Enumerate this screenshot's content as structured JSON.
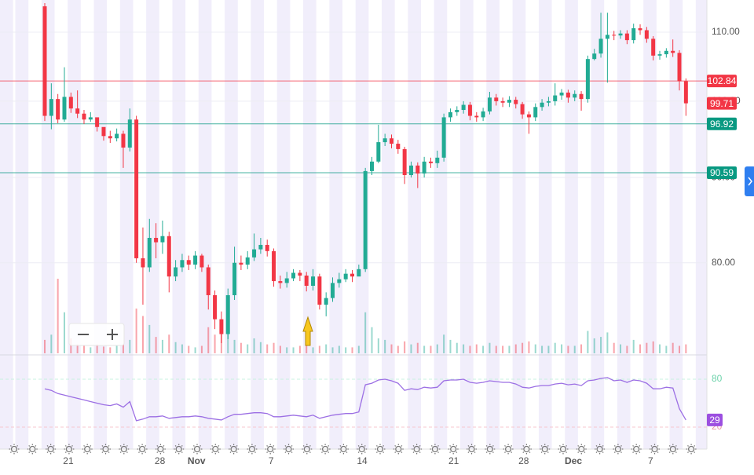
{
  "chart_data": {
    "type": "candlestick",
    "log_scale": true,
    "grid": true,
    "up_color": "#22ab94",
    "down_color": "#f23645",
    "ylim": [
      70.6,
      115.0
    ],
    "yticks": [
      {
        "value": 80,
        "label": "80.00"
      },
      {
        "value": 90,
        "label": "90.00"
      },
      {
        "value": 100,
        "label": "100.00"
      },
      {
        "value": 110,
        "label": "110.00"
      }
    ],
    "xticks": [
      {
        "value": 3.6,
        "label": "21"
      },
      {
        "value": 17.6,
        "label": "28"
      },
      {
        "value": 23.2,
        "label": "Nov"
      },
      {
        "value": 34.6,
        "label": "7"
      },
      {
        "value": 48.5,
        "label": "14"
      },
      {
        "value": 62.5,
        "label": "21"
      },
      {
        "value": 73.2,
        "label": "28"
      },
      {
        "value": 80.8,
        "label": "Dec"
      },
      {
        "value": 92.6,
        "label": "7"
      }
    ],
    "open": [
      114.0,
      98.0,
      100.3,
      97.5,
      100.6,
      99.0,
      98.3,
      97.5,
      97.8,
      96.5,
      95.3,
      95.0,
      95.6,
      93.8,
      97.5,
      80.5,
      79.5,
      82.8,
      82.3,
      83.0,
      78.5,
      79.5,
      80.3,
      79.8,
      80.8,
      79.5,
      76.5,
      74.0,
      72.5,
      76.5,
      80.0,
      79.8,
      80.6,
      81.5,
      82.0,
      81.3,
      78.0,
      77.8,
      78.3,
      78.9,
      78.6,
      77.5,
      78.5,
      75.5,
      76.2,
      77.8,
      78.2,
      78.8,
      78.5,
      79.3,
      90.8,
      92.0,
      94.5,
      95.0,
      94.3,
      93.6,
      90.3,
      91.5,
      90.5,
      92.0,
      91.8,
      92.5,
      97.8,
      98.5,
      98.8,
      99.5,
      98.0,
      97.8,
      98.6,
      100.5,
      100.0,
      99.8,
      100.2,
      99.6,
      98.2,
      97.8,
      99.2,
      99.8,
      100.0,
      100.8,
      101.2,
      100.5,
      101.0,
      100.3,
      106.0,
      106.8,
      109.0,
      109.6,
      109.5,
      109.8,
      108.8,
      110.6,
      110.3,
      109.0,
      106.5,
      106.7,
      107.2,
      106.9,
      102.8
    ],
    "high": [
      114.5,
      102.5,
      101.0,
      104.8,
      101.2,
      101.5,
      98.8,
      98.5,
      97.5,
      96.2,
      96.0,
      96.3,
      96.0,
      99.0,
      98.0,
      84.0,
      85.0,
      84.5,
      84.8,
      83.5,
      80.3,
      81.0,
      80.8,
      81.3,
      81.0,
      79.8,
      77.0,
      74.8,
      77.2,
      81.8,
      80.8,
      81.3,
      83.3,
      82.8,
      82.6,
      81.6,
      78.6,
      79.0,
      79.3,
      79.2,
      79.0,
      79.3,
      78.8,
      76.8,
      78.4,
      78.9,
      79.3,
      79.2,
      79.8,
      91.2,
      92.6,
      96.8,
      95.6,
      95.5,
      94.8,
      93.9,
      92.0,
      91.9,
      92.6,
      92.5,
      93.4,
      98.3,
      99.0,
      99.3,
      100.0,
      99.9,
      98.5,
      99.1,
      101.3,
      101.0,
      100.5,
      100.7,
      100.6,
      99.9,
      98.6,
      99.7,
      100.3,
      100.6,
      102.5,
      101.7,
      101.6,
      101.5,
      101.4,
      106.5,
      107.5,
      113.0,
      113.0,
      110.2,
      110.3,
      110.3,
      111.3,
      111.2,
      110.8,
      109.4,
      107.2,
      107.6,
      108.9,
      107.3,
      103.2
    ],
    "low": [
      97.3,
      96.2,
      97.0,
      97.2,
      98.4,
      97.7,
      96.9,
      97.2,
      95.9,
      94.7,
      94.4,
      94.6,
      91.2,
      93.3,
      80.0,
      75.5,
      79.0,
      80.5,
      81.0,
      76.8,
      78.0,
      79.0,
      79.2,
      79.3,
      79.0,
      75.0,
      73.0,
      71.6,
      72.0,
      76.0,
      79.2,
      79.3,
      80.2,
      81.0,
      80.7,
      77.4,
      77.2,
      77.3,
      78.0,
      78.0,
      76.9,
      77.0,
      75.0,
      74.3,
      75.8,
      77.3,
      77.9,
      77.9,
      78.6,
      79.0,
      90.3,
      91.8,
      94.0,
      93.7,
      93.0,
      89.2,
      90.0,
      88.7,
      90.0,
      91.2,
      91.2,
      92.0,
      97.2,
      98.0,
      98.3,
      97.4,
      97.2,
      97.3,
      98.2,
      99.4,
      99.2,
      99.2,
      99.0,
      97.6,
      95.6,
      97.3,
      98.7,
      99.3,
      99.4,
      100.2,
      99.8,
      100.0,
      98.7,
      99.8,
      105.8,
      106.2,
      102.6,
      108.8,
      109.0,
      108.2,
      108.3,
      109.6,
      108.4,
      105.8,
      105.9,
      106.2,
      106.3,
      101.5,
      98.0
    ],
    "close": [
      98.0,
      100.3,
      97.5,
      100.6,
      99.0,
      98.3,
      97.5,
      97.8,
      96.5,
      95.3,
      95.0,
      95.6,
      93.8,
      97.5,
      80.5,
      79.5,
      82.8,
      82.3,
      83.0,
      78.5,
      79.5,
      80.3,
      79.8,
      80.8,
      79.5,
      76.5,
      74.0,
      72.5,
      76.5,
      80.0,
      79.8,
      80.6,
      81.5,
      82.0,
      81.3,
      78.0,
      77.8,
      78.3,
      78.9,
      78.6,
      77.5,
      78.5,
      75.5,
      76.2,
      77.8,
      78.2,
      78.8,
      78.5,
      79.3,
      90.8,
      92.0,
      94.5,
      95.0,
      94.3,
      93.6,
      90.3,
      91.5,
      90.5,
      92.0,
      91.8,
      92.5,
      97.8,
      98.5,
      98.8,
      99.5,
      98.0,
      97.8,
      98.6,
      100.5,
      100.0,
      99.8,
      100.2,
      99.6,
      98.2,
      97.8,
      99.2,
      99.8,
      100.0,
      100.8,
      101.2,
      100.5,
      101.0,
      100.3,
      106.0,
      106.8,
      109.0,
      109.6,
      109.5,
      109.8,
      108.8,
      110.6,
      110.3,
      109.0,
      106.5,
      106.7,
      107.2,
      106.9,
      102.8,
      99.71
    ],
    "volume": [
      18,
      25,
      100,
      55,
      20,
      12,
      10,
      8,
      12,
      9,
      8,
      10,
      12,
      18,
      60,
      50,
      38,
      22,
      18,
      25,
      15,
      12,
      10,
      8,
      10,
      35,
      25,
      40,
      30,
      18,
      14,
      12,
      20,
      15,
      12,
      14,
      10,
      8,
      8,
      10,
      12,
      8,
      10,
      12,
      8,
      10,
      8,
      8,
      10,
      55,
      35,
      20,
      18,
      12,
      10,
      16,
      12,
      14,
      10,
      10,
      12,
      25,
      18,
      14,
      12,
      10,
      12,
      10,
      14,
      10,
      10,
      10,
      12,
      14,
      16,
      12,
      10,
      10,
      14,
      12,
      10,
      10,
      12,
      30,
      20,
      22,
      28,
      14,
      12,
      10,
      18,
      12,
      14,
      16,
      12,
      10,
      14,
      10,
      12
    ],
    "price_lines": [
      {
        "value": 102.84,
        "color": "#f23645"
      },
      {
        "value": 96.92,
        "color": "#089981"
      },
      {
        "value": 90.59,
        "color": "#089981"
      }
    ],
    "rsi": {
      "type": "line",
      "color": "#9c6fe4",
      "label_color": "#9c4fe0",
      "ylim": [
        -7.5,
        107.5
      ],
      "yticks": [
        20,
        80
      ],
      "values": [
        68,
        66,
        62,
        60,
        58,
        56,
        54,
        52,
        50,
        48,
        47,
        49,
        45,
        52,
        28,
        30,
        33,
        33,
        34,
        31,
        32,
        33,
        33,
        34,
        33,
        31,
        30,
        29,
        33,
        36,
        36,
        37,
        38,
        38,
        37,
        33,
        33,
        34,
        35,
        34,
        33,
        35,
        31,
        33,
        35,
        36,
        37,
        37,
        39,
        73,
        75,
        79,
        80,
        78,
        75,
        66,
        68,
        67,
        70,
        69,
        70,
        78,
        79,
        79,
        80,
        76,
        75,
        76,
        78,
        77,
        76,
        76,
        74,
        70,
        69,
        71,
        72,
        72,
        74,
        75,
        73,
        74,
        72,
        78,
        79,
        81,
        82,
        78,
        79,
        76,
        79,
        78,
        75,
        68,
        68,
        70,
        69,
        43,
        29
      ]
    }
  }
}
